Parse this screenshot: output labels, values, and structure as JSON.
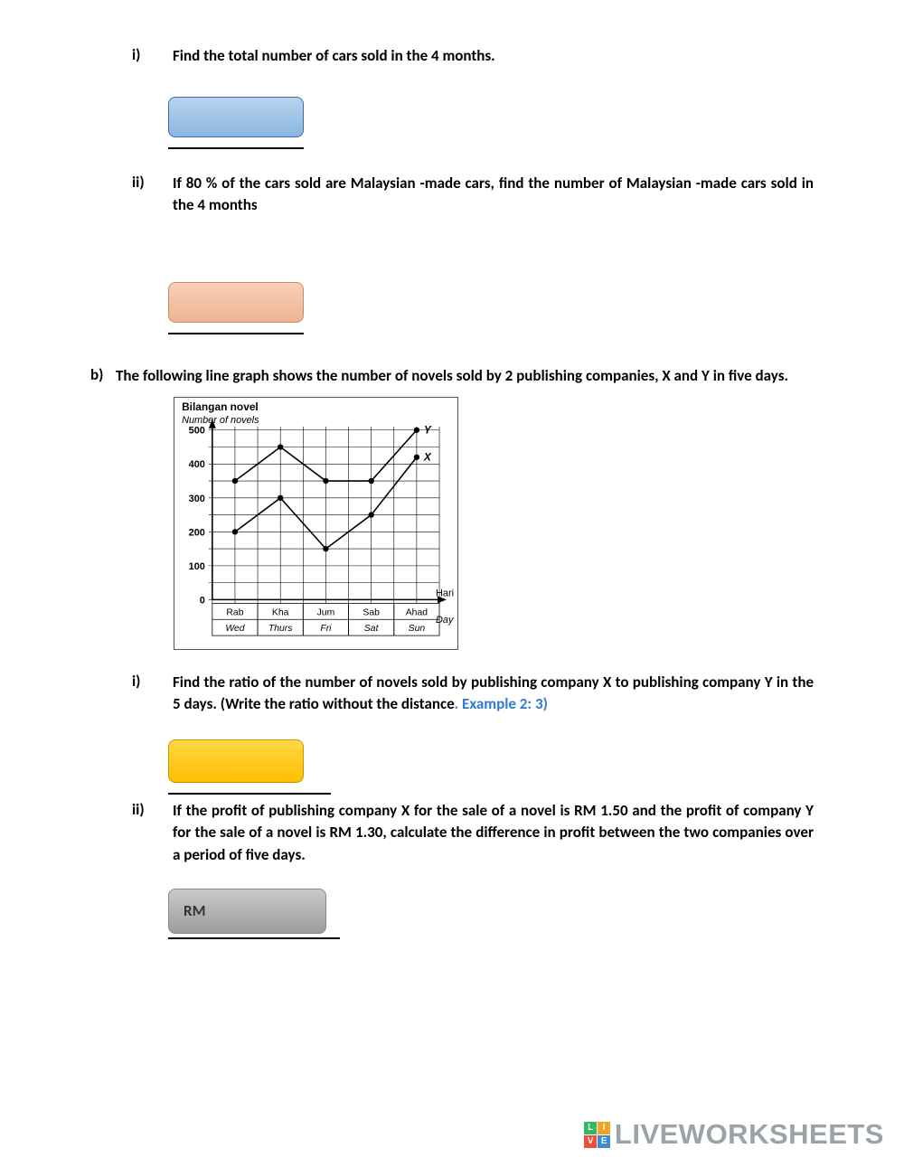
{
  "q_a_i": {
    "num": "i)",
    "text": "Find the total number of cars sold in the 4 months."
  },
  "q_a_ii": {
    "num": "ii)",
    "text": "If 80 % of the cars sold are Malaysian -made cars, find the number of Malaysian -made cars sold in the 4 months"
  },
  "q_b": {
    "num": "b)",
    "text": "The following line graph shows the number of novels sold by 2 publishing companies, X and Y in five days."
  },
  "q_b_i": {
    "num": "i)",
    "text_a": "Find the ratio of the number of novels sold by publishing company X to publishing company Y in the 5 days. (Write the ratio without the distance",
    "example": ". Example 2: 3)"
  },
  "q_b_ii": {
    "num": "ii)",
    "text": "If the profit of publishing company X for the sale of a novel is RM 1.50 and the profit of company Y for the sale of a novel is RM 1.30, calculate the difference in profit between the two companies over a period of five days."
  },
  "rm_label": "RM",
  "graph": {
    "title_top": "Bilangan novel",
    "title_sub": "Number of novels",
    "x_label_top": "Hari",
    "x_label_sub": "Day",
    "y_ticks": [
      0,
      100,
      200,
      300,
      400,
      500
    ],
    "x_cats_top": [
      "Rab",
      "Kha",
      "Jum",
      "Sab",
      "Ahad"
    ],
    "x_cats_sub": [
      "Wed",
      "Thurs",
      "Fri",
      "Sat",
      "Sun"
    ],
    "series_Y": {
      "label": "Y",
      "values": [
        350,
        450,
        350,
        350,
        500
      ]
    },
    "series_X": {
      "label": "X",
      "values": [
        200,
        300,
        150,
        250,
        420
      ]
    },
    "line_color": "#000000",
    "marker": "circle",
    "bg": "#ffffff"
  },
  "colors": {
    "blue": "#8ab6e0",
    "orange": "#eeb493",
    "yellow": "#fdbf00",
    "gray": "#9c9c9c"
  },
  "watermark": {
    "text": "LIVEWORKSHEETS",
    "logo": [
      [
        "L",
        "I"
      ],
      [
        "V",
        "E"
      ]
    ],
    "logo_colors": {
      "L": "#33b864",
      "I": "#f2a324",
      "V": "#e8503f",
      "E": "#3a8dd0"
    }
  }
}
